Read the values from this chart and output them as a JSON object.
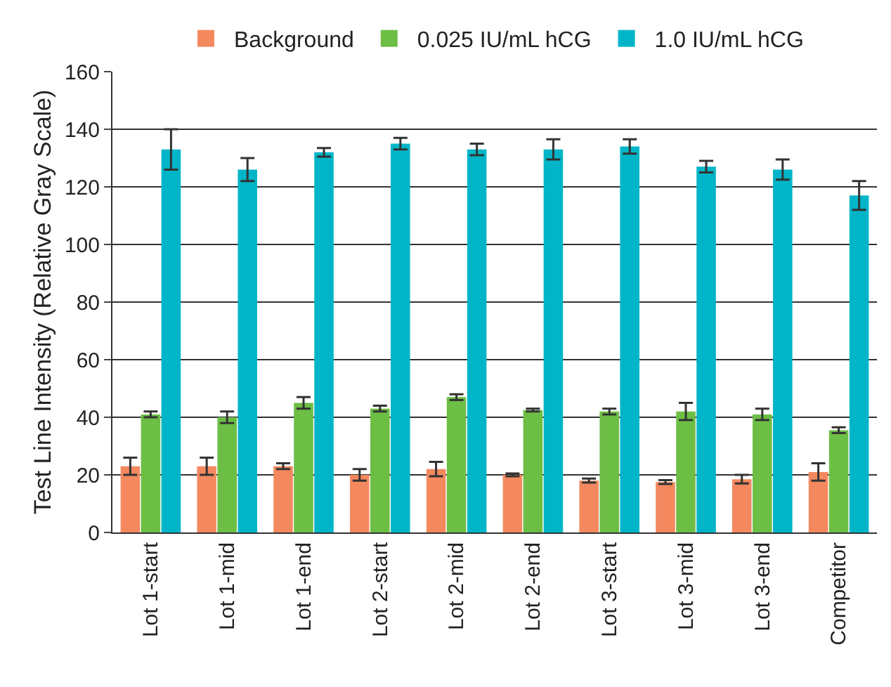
{
  "chart_data": {
    "type": "bar",
    "ylabel": "Test Line Intensity (Relative Gray Scale)",
    "categories": [
      "Lot 1-start",
      "Lot 1-mid",
      "Lot 1-end",
      "Lot 2-start",
      "Lot 2-mid",
      "Lot 2-end",
      "Lot 3-start",
      "Lot 3-mid",
      "Lot 3-end",
      "Competitor"
    ],
    "series": [
      {
        "name": "Background",
        "color": "#f4895f",
        "values": [
          23,
          23,
          23,
          20,
          22,
          20,
          18,
          17.5,
          18.5,
          21
        ],
        "errors": [
          3,
          3,
          1,
          2,
          2.5,
          0.5,
          0.7,
          0.7,
          1.5,
          3
        ]
      },
      {
        "name": "0.025 IU/mL hCG",
        "color": "#6dbe45",
        "values": [
          41,
          40,
          45,
          43,
          47,
          42.5,
          42,
          42,
          41,
          35.5
        ],
        "errors": [
          1,
          2,
          2,
          1,
          1,
          0.5,
          1,
          3,
          2,
          1
        ]
      },
      {
        "name": "1.0 IU/mL hCG",
        "color": "#00b5c8",
        "values": [
          133,
          126,
          132,
          135,
          133,
          133,
          134,
          127,
          126,
          117
        ],
        "errors": [
          7,
          4,
          1.5,
          2,
          2,
          3.5,
          2.5,
          2,
          3.5,
          5
        ]
      }
    ],
    "ylim": [
      0,
      160
    ],
    "yticks": [
      0,
      20,
      40,
      60,
      80,
      100,
      120,
      140,
      160
    ],
    "grid": "y",
    "legend": "top"
  }
}
